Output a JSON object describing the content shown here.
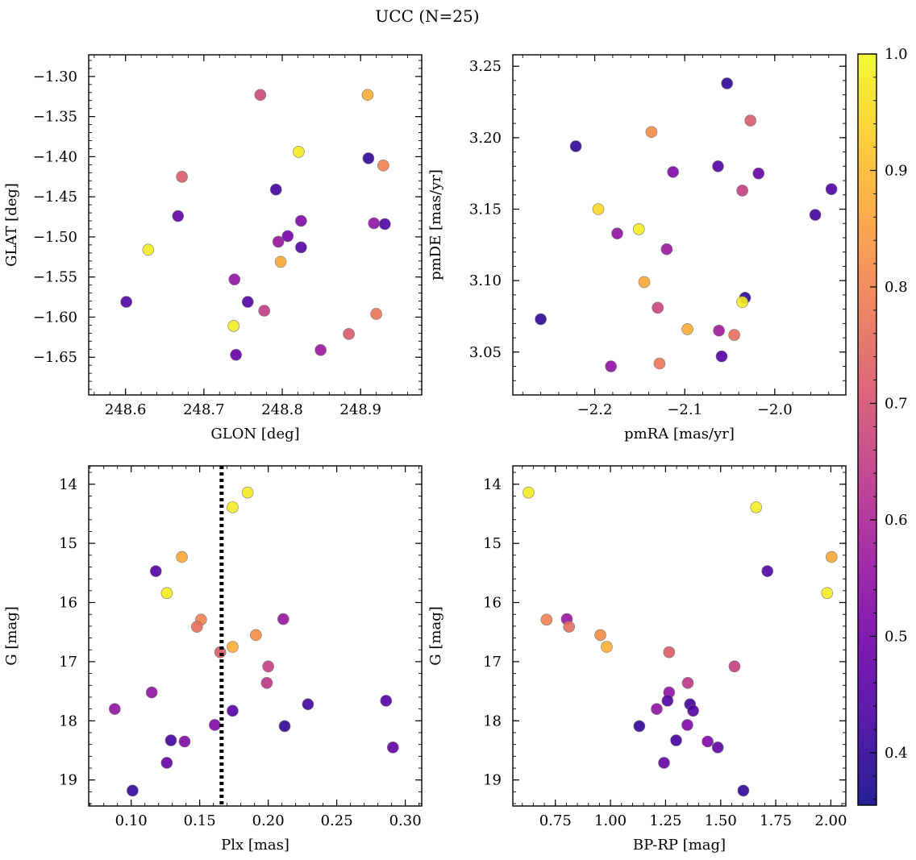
{
  "title": "UCC (N=25)",
  "chart_data": [
    {
      "type": "scatter",
      "xlabel": "GLON [deg]",
      "ylabel": "GLAT [deg]",
      "xlim": [
        248.553,
        248.978
      ],
      "ylim": [
        -1.697,
        -1.273
      ],
      "xticks": [
        248.6,
        248.7,
        248.8,
        248.9
      ],
      "xtick_labels": [
        "248.6",
        "248.7",
        "248.8",
        "248.9"
      ],
      "yticks": [
        -1.3,
        -1.35,
        -1.4,
        -1.45,
        -1.5,
        -1.55,
        -1.6,
        -1.65
      ],
      "ytick_labels": [
        "−1.30",
        "−1.35",
        "−1.40",
        "−1.45",
        "−1.50",
        "−1.55",
        "−1.60",
        "−1.65"
      ],
      "points": [
        {
          "x": 248.772,
          "y": -1.323,
          "c": 0.68
        },
        {
          "x": 248.909,
          "y": -1.323,
          "c": 0.88
        },
        {
          "x": 248.821,
          "y": -1.394,
          "c": 0.98
        },
        {
          "x": 248.91,
          "y": -1.402,
          "c": 0.4
        },
        {
          "x": 248.929,
          "y": -1.411,
          "c": 0.8
        },
        {
          "x": 248.672,
          "y": -1.425,
          "c": 0.72
        },
        {
          "x": 248.792,
          "y": -1.441,
          "c": 0.42
        },
        {
          "x": 248.667,
          "y": -1.474,
          "c": 0.47
        },
        {
          "x": 248.824,
          "y": -1.48,
          "c": 0.52
        },
        {
          "x": 248.917,
          "y": -1.483,
          "c": 0.55
        },
        {
          "x": 248.931,
          "y": -1.484,
          "c": 0.44
        },
        {
          "x": 248.807,
          "y": -1.499,
          "c": 0.5
        },
        {
          "x": 248.795,
          "y": -1.506,
          "c": 0.56
        },
        {
          "x": 248.824,
          "y": -1.513,
          "c": 0.45
        },
        {
          "x": 248.629,
          "y": -1.516,
          "c": 0.98
        },
        {
          "x": 248.798,
          "y": -1.531,
          "c": 0.87
        },
        {
          "x": 248.739,
          "y": -1.553,
          "c": 0.55
        },
        {
          "x": 248.601,
          "y": -1.581,
          "c": 0.44
        },
        {
          "x": 248.756,
          "y": -1.581,
          "c": 0.45
        },
        {
          "x": 248.777,
          "y": -1.592,
          "c": 0.65
        },
        {
          "x": 248.92,
          "y": -1.596,
          "c": 0.77
        },
        {
          "x": 248.738,
          "y": -1.611,
          "c": 0.98
        },
        {
          "x": 248.885,
          "y": -1.621,
          "c": 0.72
        },
        {
          "x": 248.849,
          "y": -1.641,
          "c": 0.57
        },
        {
          "x": 248.741,
          "y": -1.647,
          "c": 0.48
        }
      ]
    },
    {
      "type": "scatter",
      "xlabel": "pmRA [mas/yr]",
      "ylabel": "pmDE [mas/yr]",
      "xlim": [
        -2.291,
        -1.921
      ],
      "ylim": [
        3.02,
        3.258
      ],
      "xticks": [
        -2.2,
        -2.1,
        -2.0
      ],
      "xtick_labels": [
        "−2.2",
        "−2.1",
        "−2.0"
      ],
      "yticks": [
        3.05,
        3.1,
        3.15,
        3.2,
        3.25
      ],
      "ytick_labels": [
        "3.05",
        "3.10",
        "3.15",
        "3.20",
        "3.25"
      ],
      "points": [
        {
          "x": -2.053,
          "y": 3.238,
          "c": 0.4
        },
        {
          "x": -2.027,
          "y": 3.212,
          "c": 0.72
        },
        {
          "x": -2.137,
          "y": 3.204,
          "c": 0.82
        },
        {
          "x": -2.221,
          "y": 3.194,
          "c": 0.4
        },
        {
          "x": -2.063,
          "y": 3.18,
          "c": 0.45
        },
        {
          "x": -2.113,
          "y": 3.176,
          "c": 0.52
        },
        {
          "x": -2.018,
          "y": 3.175,
          "c": 0.48
        },
        {
          "x": -1.937,
          "y": 3.164,
          "c": 0.44
        },
        {
          "x": -2.036,
          "y": 3.163,
          "c": 0.66
        },
        {
          "x": -2.196,
          "y": 3.15,
          "c": 0.95
        },
        {
          "x": -1.955,
          "y": 3.146,
          "c": 0.42
        },
        {
          "x": -2.151,
          "y": 3.136,
          "c": 0.98
        },
        {
          "x": -2.175,
          "y": 3.133,
          "c": 0.55
        },
        {
          "x": -2.12,
          "y": 3.122,
          "c": 0.57
        },
        {
          "x": -2.145,
          "y": 3.099,
          "c": 0.87
        },
        {
          "x": -2.033,
          "y": 3.088,
          "c": 0.4
        },
        {
          "x": -2.036,
          "y": 3.085,
          "c": 0.98
        },
        {
          "x": -2.13,
          "y": 3.081,
          "c": 0.67
        },
        {
          "x": -2.26,
          "y": 3.073,
          "c": 0.4
        },
        {
          "x": -2.097,
          "y": 3.066,
          "c": 0.88
        },
        {
          "x": -2.062,
          "y": 3.065,
          "c": 0.58
        },
        {
          "x": -2.045,
          "y": 3.062,
          "c": 0.76
        },
        {
          "x": -2.059,
          "y": 3.047,
          "c": 0.45
        },
        {
          "x": -2.128,
          "y": 3.042,
          "c": 0.78
        },
        {
          "x": -2.182,
          "y": 3.04,
          "c": 0.55
        }
      ]
    },
    {
      "type": "scatter",
      "xlabel": "Plx [mas]",
      "ylabel": "G [mag]",
      "xlim": [
        0.069,
        0.312
      ],
      "ylim": [
        19.44,
        13.69
      ],
      "y_inverted": true,
      "xticks": [
        0.1,
        0.15,
        0.2,
        0.25,
        0.3
      ],
      "xtick_labels": [
        "0.10",
        "0.15",
        "0.20",
        "0.25",
        "0.30"
      ],
      "yticks": [
        14,
        15,
        16,
        17,
        18,
        19
      ],
      "ytick_labels": [
        "14",
        "15",
        "16",
        "17",
        "18",
        "19"
      ],
      "vline": {
        "x": 0.166,
        "style": "dotted",
        "color": "#000000"
      },
      "points": [
        {
          "x": 0.185,
          "y": 14.14,
          "c": 0.98
        },
        {
          "x": 0.174,
          "y": 14.39,
          "c": 0.98
        },
        {
          "x": 0.137,
          "y": 15.23,
          "c": 0.87
        },
        {
          "x": 0.118,
          "y": 15.47,
          "c": 0.45
        },
        {
          "x": 0.126,
          "y": 15.84,
          "c": 0.98
        },
        {
          "x": 0.151,
          "y": 16.29,
          "c": 0.8
        },
        {
          "x": 0.211,
          "y": 16.28,
          "c": 0.56
        },
        {
          "x": 0.148,
          "y": 16.41,
          "c": 0.76
        },
        {
          "x": 0.191,
          "y": 16.55,
          "c": 0.82
        },
        {
          "x": 0.174,
          "y": 16.75,
          "c": 0.88
        },
        {
          "x": 0.165,
          "y": 16.84,
          "c": 0.72
        },
        {
          "x": 0.2,
          "y": 17.08,
          "c": 0.66
        },
        {
          "x": 0.199,
          "y": 17.36,
          "c": 0.64
        },
        {
          "x": 0.115,
          "y": 17.52,
          "c": 0.55
        },
        {
          "x": 0.286,
          "y": 17.66,
          "c": 0.45
        },
        {
          "x": 0.229,
          "y": 17.72,
          "c": 0.42
        },
        {
          "x": 0.088,
          "y": 17.8,
          "c": 0.55
        },
        {
          "x": 0.174,
          "y": 17.83,
          "c": 0.45
        },
        {
          "x": 0.161,
          "y": 18.07,
          "c": 0.52
        },
        {
          "x": 0.212,
          "y": 18.09,
          "c": 0.4
        },
        {
          "x": 0.129,
          "y": 18.33,
          "c": 0.42
        },
        {
          "x": 0.139,
          "y": 18.35,
          "c": 0.52
        },
        {
          "x": 0.291,
          "y": 18.45,
          "c": 0.47
        },
        {
          "x": 0.126,
          "y": 18.71,
          "c": 0.48
        },
        {
          "x": 0.101,
          "y": 19.18,
          "c": 0.4
        }
      ]
    },
    {
      "type": "scatter",
      "xlabel": "BP-RP [mag]",
      "ylabel": "G [mag]",
      "xlim": [
        0.557,
        2.068
      ],
      "ylim": [
        19.44,
        13.69
      ],
      "y_inverted": true,
      "xticks": [
        0.75,
        1.0,
        1.25,
        1.5,
        1.75,
        2.0
      ],
      "xtick_labels": [
        "0.75",
        "1.00",
        "1.25",
        "1.50",
        "1.75",
        "2.00"
      ],
      "yticks": [
        14,
        15,
        16,
        17,
        18,
        19
      ],
      "ytick_labels": [
        "14",
        "15",
        "16",
        "17",
        "18",
        "19"
      ],
      "points": [
        {
          "x": 0.628,
          "y": 14.14,
          "c": 0.98
        },
        {
          "x": 1.661,
          "y": 14.39,
          "c": 0.98
        },
        {
          "x": 2.003,
          "y": 15.23,
          "c": 0.87
        },
        {
          "x": 1.712,
          "y": 15.47,
          "c": 0.45
        },
        {
          "x": 1.983,
          "y": 15.84,
          "c": 0.98
        },
        {
          "x": 0.71,
          "y": 16.29,
          "c": 0.8
        },
        {
          "x": 0.802,
          "y": 16.28,
          "c": 0.56
        },
        {
          "x": 0.812,
          "y": 16.41,
          "c": 0.76
        },
        {
          "x": 0.954,
          "y": 16.55,
          "c": 0.82
        },
        {
          "x": 0.983,
          "y": 16.75,
          "c": 0.88
        },
        {
          "x": 1.266,
          "y": 16.84,
          "c": 0.72
        },
        {
          "x": 1.563,
          "y": 17.08,
          "c": 0.66
        },
        {
          "x": 1.351,
          "y": 17.36,
          "c": 0.64
        },
        {
          "x": 1.266,
          "y": 17.52,
          "c": 0.55
        },
        {
          "x": 1.259,
          "y": 17.66,
          "c": 0.45
        },
        {
          "x": 1.361,
          "y": 17.72,
          "c": 0.42
        },
        {
          "x": 1.21,
          "y": 17.8,
          "c": 0.55
        },
        {
          "x": 1.375,
          "y": 17.83,
          "c": 0.45
        },
        {
          "x": 1.349,
          "y": 18.07,
          "c": 0.52
        },
        {
          "x": 1.131,
          "y": 18.09,
          "c": 0.4
        },
        {
          "x": 1.298,
          "y": 18.33,
          "c": 0.42
        },
        {
          "x": 1.441,
          "y": 18.35,
          "c": 0.52
        },
        {
          "x": 1.487,
          "y": 18.45,
          "c": 0.47
        },
        {
          "x": 1.243,
          "y": 18.71,
          "c": 0.48
        },
        {
          "x": 1.603,
          "y": 19.18,
          "c": 0.4
        }
      ]
    }
  ],
  "colorbar": {
    "colormap": "plasma",
    "range": [
      0.355,
      1.0
    ],
    "ticks": [
      0.4,
      0.5,
      0.6,
      0.7,
      0.8,
      0.9,
      1.0
    ],
    "tick_labels": [
      "0.4",
      "0.5",
      "0.6",
      "0.7",
      "0.8",
      "0.9",
      "1.0"
    ]
  },
  "colors": {
    "plasma_stops": [
      "#0d0887",
      "#46039f",
      "#7201a8",
      "#9c179e",
      "#bd3786",
      "#d8576b",
      "#ed7953",
      "#fb9f3a",
      "#fdca26",
      "#f0f921"
    ]
  }
}
